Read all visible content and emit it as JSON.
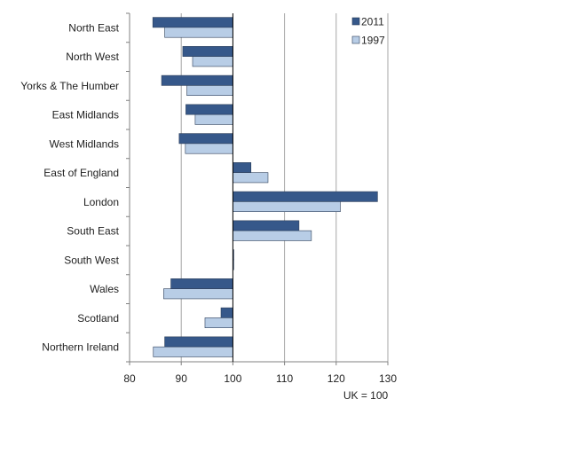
{
  "chart_data": {
    "type": "bar",
    "orientation": "horizontal",
    "categories": [
      "North East",
      "North West",
      "Yorks & The  Humber",
      "East Midlands",
      "West Midlands",
      "East of England",
      "London",
      "South East",
      "South West",
      "Wales",
      "Scotland",
      "Northern Ireland"
    ],
    "series": [
      {
        "name": "2011",
        "color": "#36588a",
        "values": [
          84.5,
          90.3,
          86.2,
          90.9,
          89.6,
          103.5,
          128.0,
          112.8,
          100.1,
          88.0,
          97.7,
          86.8
        ]
      },
      {
        "name": "1997",
        "color": "#b8cde6",
        "values": [
          86.8,
          92.2,
          91.1,
          92.7,
          90.8,
          106.8,
          120.8,
          115.2,
          100.0,
          86.6,
          94.6,
          84.6
        ]
      }
    ],
    "baseline": 100,
    "xlim": [
      80,
      130
    ],
    "xticks": [
      80,
      90,
      100,
      110,
      120,
      130
    ],
    "xlabel": "UK =  100",
    "grid": "vertical",
    "legend": "top-right"
  }
}
